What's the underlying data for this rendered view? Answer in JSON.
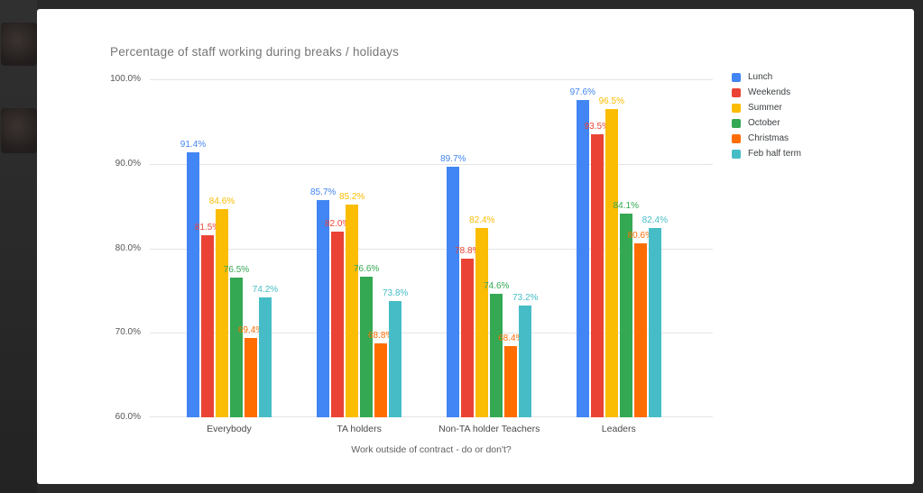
{
  "frame": {
    "background_color": "#292929",
    "card_background_color": "#ffffff"
  },
  "chart_data": {
    "type": "bar",
    "title": "Percentage of staff working during breaks / holidays",
    "xlabel": "Work outside of contract - do or don't?",
    "ylabel": "",
    "categories": [
      "Everybody",
      "TA holders",
      "Non-TA holder Teachers",
      "Leaders"
    ],
    "series": [
      {
        "name": "Lunch",
        "color": "#4285F4",
        "values": [
          91.4,
          85.7,
          89.7,
          97.6
        ]
      },
      {
        "name": "Weekends",
        "color": "#EA4335",
        "values": [
          81.5,
          82.0,
          78.8,
          93.5
        ]
      },
      {
        "name": "Summer",
        "color": "#FBBC04",
        "values": [
          84.6,
          85.2,
          82.4,
          96.5
        ]
      },
      {
        "name": "October",
        "color": "#34A853",
        "values": [
          76.5,
          76.6,
          74.6,
          84.1
        ]
      },
      {
        "name": "Christmas",
        "color": "#FF6D01",
        "values": [
          69.4,
          68.8,
          68.4,
          80.6
        ]
      },
      {
        "name": "Feb half term",
        "color": "#46BDC6",
        "values": [
          74.2,
          73.8,
          73.2,
          82.4
        ]
      }
    ],
    "ylim": [
      60,
      100
    ],
    "yticks": [
      "100.0%",
      "90.0%",
      "80.0%",
      "70.0%",
      "60.0%"
    ],
    "grid": true,
    "legend_position": "right",
    "data_labels": "shown, one decimal place with % sign, colored per series"
  }
}
